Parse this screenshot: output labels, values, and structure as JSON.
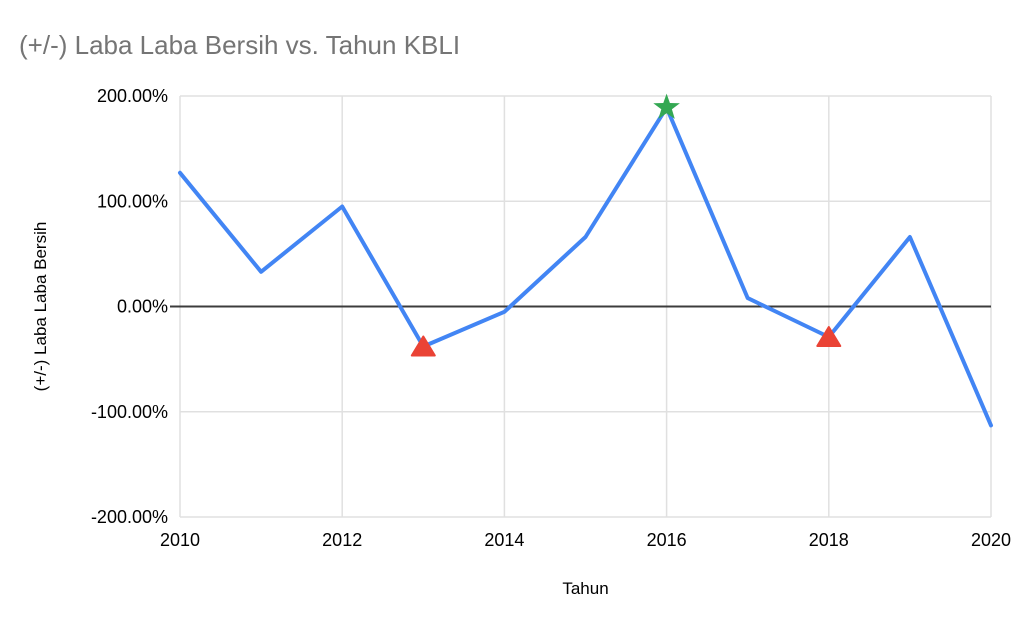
{
  "chart_data": {
    "type": "line",
    "title": "(+/-) Laba Laba Bersih vs. Tahun KBLI",
    "xlabel": "Tahun",
    "ylabel": "(+/-) Laba Laba Bersih",
    "x": [
      2010,
      2011,
      2012,
      2013,
      2014,
      2015,
      2016,
      2017,
      2018,
      2019,
      2020
    ],
    "values_pct": [
      127,
      33,
      95,
      -38,
      -5,
      66,
      189,
      8,
      -29,
      66,
      -113
    ],
    "xlim": [
      2010,
      2020
    ],
    "ylim": [
      -200,
      200
    ],
    "xticks": [
      {
        "value": 2010,
        "label": "2010"
      },
      {
        "value": 2012,
        "label": "2012"
      },
      {
        "value": 2014,
        "label": "2014"
      },
      {
        "value": 2016,
        "label": "2016"
      },
      {
        "value": 2018,
        "label": "2018"
      },
      {
        "value": 2020,
        "label": "2020"
      }
    ],
    "yticks": [
      {
        "value": 200,
        "label": "200.00%"
      },
      {
        "value": 100,
        "label": "100.00%"
      },
      {
        "value": 0,
        "label": "0.00%"
      },
      {
        "value": -100,
        "label": "-100.00%"
      },
      {
        "value": -200,
        "label": "-200.00%"
      }
    ],
    "grid": true,
    "legend_position": "none",
    "markers": [
      {
        "x": 2013,
        "shape": "triangle-up",
        "color": "#EA4335"
      },
      {
        "x": 2016,
        "shape": "star",
        "color": "#34A853"
      },
      {
        "x": 2018,
        "shape": "triangle-up",
        "color": "#EA4335"
      }
    ],
    "colors": {
      "line": "#4285F4",
      "star_marker": "#34A853",
      "triangle_marker": "#EA4335",
      "grid": "#E0E0E0",
      "zero_line": "#3C3C3C",
      "tick_text": "#000000",
      "title_text": "#757575"
    }
  }
}
